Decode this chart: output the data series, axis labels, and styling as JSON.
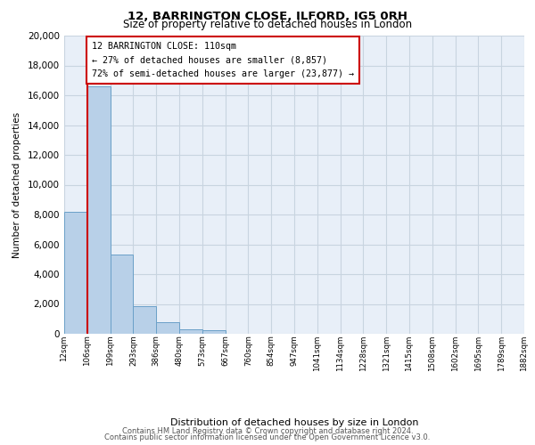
{
  "title": "12, BARRINGTON CLOSE, ILFORD, IG5 0RH",
  "subtitle": "Size of property relative to detached houses in London",
  "xlabel": "Distribution of detached houses by size in London",
  "ylabel": "Number of detached properties",
  "bar_color": "#b8d0e8",
  "bar_edge_color": "#6aa0c8",
  "bg_color": "#e8eff8",
  "grid_color": "#c8d4e0",
  "annotation_line_color": "#cc0000",
  "annotation_box_color": "#ffffff",
  "annotation_box_edge": "#cc0000",
  "bins": [
    12,
    106,
    199,
    293,
    386,
    480,
    573,
    667,
    760,
    854,
    947,
    1041,
    1134,
    1228,
    1321,
    1415,
    1508,
    1602,
    1695,
    1789,
    1882
  ],
  "counts": [
    8200,
    16600,
    5300,
    1850,
    800,
    280,
    230,
    0,
    0,
    0,
    0,
    0,
    0,
    0,
    0,
    0,
    0,
    0,
    0,
    0
  ],
  "property_name": "12 BARRINGTON CLOSE: 110sqm",
  "pct_smaller": 27,
  "count_smaller": 8857,
  "pct_larger": 72,
  "count_larger": 23877,
  "ylim": [
    0,
    20000
  ],
  "yticks": [
    0,
    2000,
    4000,
    6000,
    8000,
    10000,
    12000,
    14000,
    16000,
    18000,
    20000
  ],
  "tick_labels": [
    "12sqm",
    "106sqm",
    "199sqm",
    "293sqm",
    "386sqm",
    "480sqm",
    "573sqm",
    "667sqm",
    "760sqm",
    "854sqm",
    "947sqm",
    "1041sqm",
    "1134sqm",
    "1228sqm",
    "1321sqm",
    "1415sqm",
    "1508sqm",
    "1602sqm",
    "1695sqm",
    "1789sqm",
    "1882sqm"
  ],
  "footer1": "Contains HM Land Registry data © Crown copyright and database right 2024.",
  "footer2": "Contains public sector information licensed under the Open Government Licence v3.0."
}
